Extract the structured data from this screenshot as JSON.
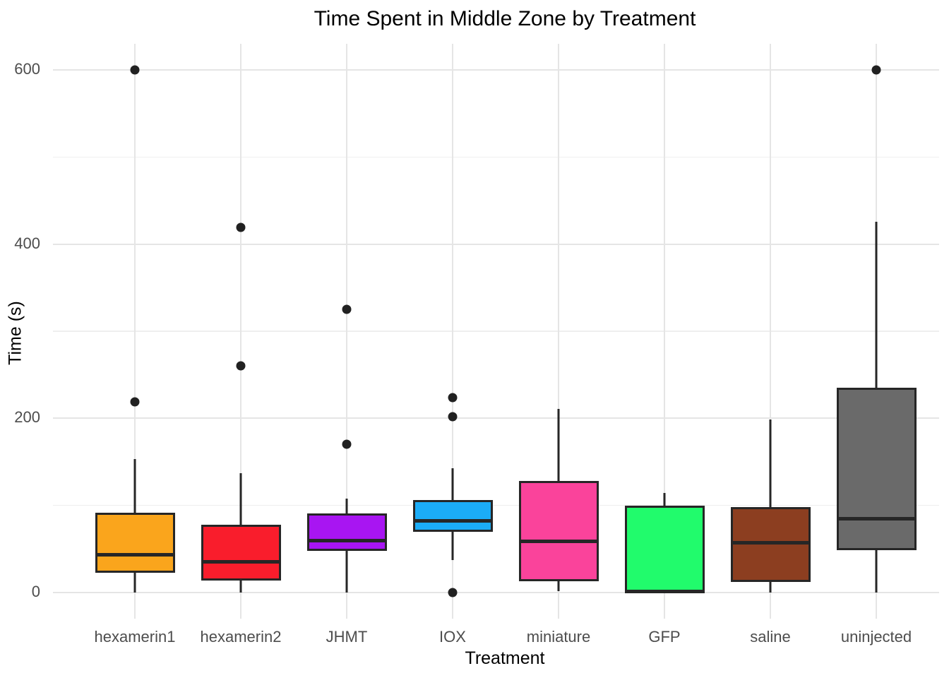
{
  "title": "Time Spent in Middle Zone by Treatment",
  "x_axis": {
    "label": "Treatment",
    "tick_labels": [
      "hexamerin1",
      "hexamerin2",
      "JHMT",
      "IOX",
      "miniature",
      "GFP",
      "saline",
      "uninjected"
    ]
  },
  "y_axis": {
    "label": "Time (s)",
    "tick_labels": [
      "0",
      "200",
      "400",
      "600"
    ],
    "tick_values": [
      0,
      200,
      400,
      600
    ],
    "minor_tick_values": [
      100,
      300,
      500
    ]
  },
  "colors": {
    "background": "#ffffff",
    "grid_major": "#e5e5e5",
    "grid_minor": "#efefef",
    "box_stroke": "#262626",
    "outlier_point": "#212121",
    "tick_text": "#4d4d4d",
    "title_text": "#000000"
  },
  "chart_data": {
    "type": "boxplot",
    "title": "Time Spent in Middle Zone by Treatment",
    "xlabel": "Treatment",
    "ylabel": "Time (s)",
    "ylim": [
      -30,
      630
    ],
    "grid": true,
    "categories": [
      "hexamerin1",
      "hexamerin2",
      "JHMT",
      "IOX",
      "miniature",
      "GFP",
      "saline",
      "uninjected"
    ],
    "series": [
      {
        "name": "hexamerin1",
        "color": "#faa51c",
        "whisker_low": 0,
        "q1": 23,
        "median": 43,
        "q3": 92,
        "whisker_high": 153,
        "outliers": [
          219,
          600
        ]
      },
      {
        "name": "hexamerin2",
        "color": "#f91d2c",
        "whisker_low": 0,
        "q1": 14,
        "median": 35,
        "q3": 78,
        "whisker_high": 137,
        "outliers": [
          260,
          419
        ]
      },
      {
        "name": "JHMT",
        "color": "#a815f2",
        "whisker_low": 0,
        "q1": 48,
        "median": 60,
        "q3": 91,
        "whisker_high": 108,
        "outliers": [
          170,
          325
        ]
      },
      {
        "name": "IOX",
        "color": "#1bacf7",
        "whisker_low": 37,
        "q1": 70,
        "median": 82,
        "q3": 106,
        "whisker_high": 143,
        "outliers": [
          0,
          202,
          224
        ]
      },
      {
        "name": "miniature",
        "color": "#fa439b",
        "whisker_low": 2,
        "q1": 13,
        "median": 59,
        "q3": 128,
        "whisker_high": 211,
        "outliers": []
      },
      {
        "name": "GFP",
        "color": "#21fb6c",
        "whisker_low": 0,
        "q1": 0,
        "median": 1,
        "q3": 100,
        "whisker_high": 114,
        "outliers": []
      },
      {
        "name": "saline",
        "color": "#8c3e20",
        "whisker_low": 0,
        "q1": 12,
        "median": 57,
        "q3": 98,
        "whisker_high": 199,
        "outliers": []
      },
      {
        "name": "uninjected",
        "color": "#6a6a6a",
        "whisker_low": 0,
        "q1": 49,
        "median": 85,
        "q3": 235,
        "whisker_high": 426,
        "outliers": [
          600
        ]
      }
    ]
  }
}
